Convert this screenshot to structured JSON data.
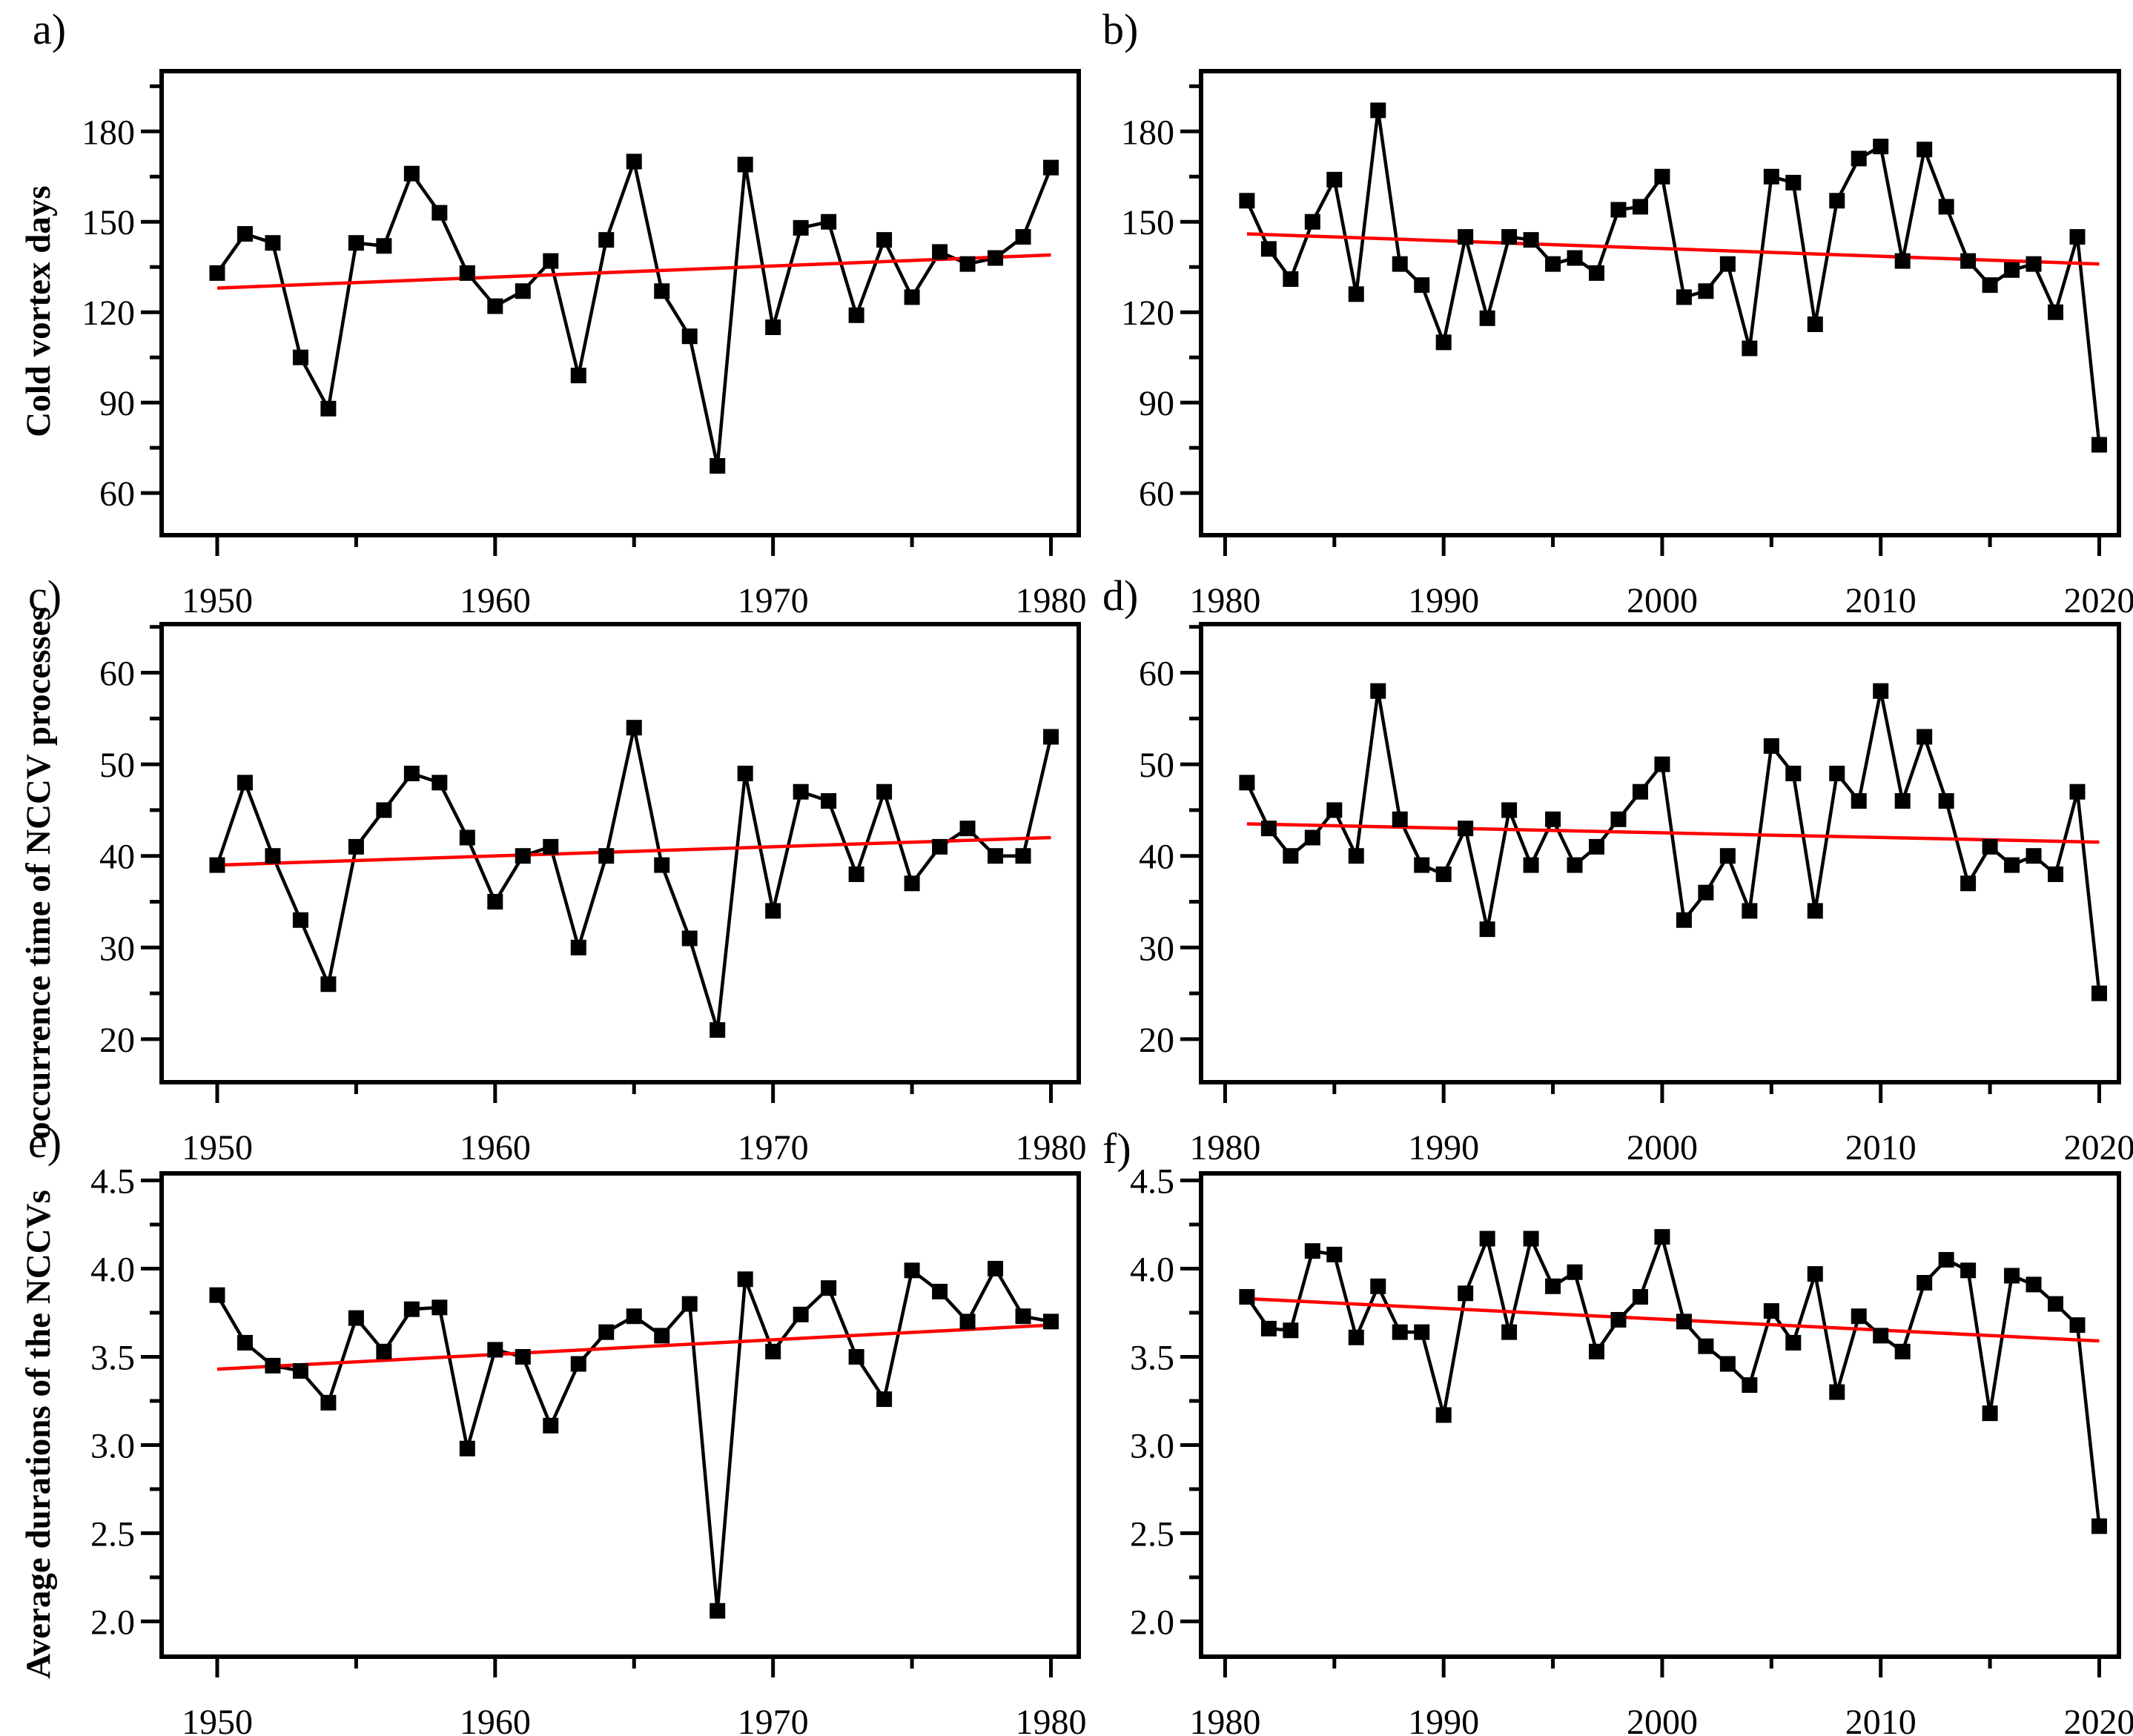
{
  "page": {
    "background": "#ffffff"
  },
  "colors": {
    "line": "#000000",
    "trend": "#fe0000",
    "frame": "#000000",
    "text": "#000000"
  },
  "chart_data": [
    {
      "id": "a",
      "type": "line",
      "letter": "a)",
      "ylabel": "Cold vortex days",
      "col": "left",
      "row": "1",
      "grid": false,
      "legend": "none",
      "marker": "square",
      "y_tick_decimals": 0,
      "xlim": [
        1948,
        1981
      ],
      "ylim": [
        46,
        200
      ],
      "x_major_ticks": [
        1950,
        1960,
        1970,
        1980
      ],
      "x_minor_ticks": [
        1955,
        1965,
        1975
      ],
      "y_major_ticks": [
        60,
        90,
        120,
        150,
        180
      ],
      "y_minor_ticks": [
        75,
        105,
        135,
        165,
        195
      ],
      "x": [
        1950,
        1951,
        1952,
        1953,
        1954,
        1955,
        1956,
        1957,
        1958,
        1959,
        1960,
        1961,
        1962,
        1963,
        1964,
        1965,
        1966,
        1967,
        1968,
        1969,
        1970,
        1971,
        1972,
        1973,
        1974,
        1975,
        1976,
        1977,
        1978,
        1979,
        1980
      ],
      "values": [
        133,
        146,
        143,
        105,
        88,
        143,
        142,
        166,
        153,
        133,
        122,
        127,
        137,
        99,
        144,
        170,
        127,
        112,
        69,
        169,
        115,
        148,
        150,
        119,
        144,
        125,
        140,
        136,
        138,
        145,
        168
      ],
      "trend": {
        "x": [
          1950,
          1980
        ],
        "values": [
          128,
          139
        ]
      }
    },
    {
      "id": "b",
      "type": "line",
      "letter": "b)",
      "ylabel": "",
      "col": "right",
      "row": "1",
      "grid": false,
      "legend": "none",
      "marker": "square",
      "y_tick_decimals": 0,
      "xlim": [
        1978.9,
        2020.9
      ],
      "ylim": [
        46,
        200
      ],
      "x_major_ticks": [
        1980,
        1990,
        2000,
        2010,
        2020
      ],
      "x_minor_ticks": [
        1985,
        1995,
        2005,
        2015
      ],
      "y_major_ticks": [
        60,
        90,
        120,
        150,
        180
      ],
      "y_minor_ticks": [
        75,
        105,
        135,
        165,
        195
      ],
      "x": [
        1981,
        1982,
        1983,
        1984,
        1985,
        1986,
        1987,
        1988,
        1989,
        1990,
        1991,
        1992,
        1993,
        1994,
        1995,
        1996,
        1997,
        1998,
        1999,
        2000,
        2001,
        2002,
        2003,
        2004,
        2005,
        2006,
        2007,
        2008,
        2009,
        2010,
        2011,
        2012,
        2013,
        2014,
        2015,
        2016,
        2017,
        2018,
        2019,
        2020
      ],
      "values": [
        157,
        141,
        131,
        150,
        164,
        126,
        187,
        136,
        129,
        110,
        145,
        118,
        145,
        144,
        136,
        138,
        133,
        154,
        155,
        165,
        125,
        127,
        136,
        108,
        165,
        163,
        116,
        157,
        171,
        175,
        137,
        174,
        155,
        137,
        129,
        134,
        136,
        120,
        145,
        76
      ],
      "trend": {
        "x": [
          1981,
          2020
        ],
        "values": [
          146,
          136
        ]
      }
    },
    {
      "id": "c",
      "type": "line",
      "letter": "c)",
      "ylabel": "occurrence time of NCCV processes",
      "col": "left",
      "row": "2",
      "grid": false,
      "legend": "none",
      "marker": "square",
      "y_tick_decimals": 0,
      "xlim": [
        1948,
        1981
      ],
      "ylim": [
        15.3,
        65.3
      ],
      "x_major_ticks": [
        1950,
        1960,
        1970,
        1980
      ],
      "x_minor_ticks": [
        1955,
        1965,
        1975
      ],
      "y_major_ticks": [
        20,
        30,
        40,
        50,
        60
      ],
      "y_minor_ticks": [
        25,
        35,
        45,
        55,
        65
      ],
      "x": [
        1950,
        1951,
        1952,
        1953,
        1954,
        1955,
        1956,
        1957,
        1958,
        1959,
        1960,
        1961,
        1962,
        1963,
        1964,
        1965,
        1966,
        1967,
        1968,
        1969,
        1970,
        1971,
        1972,
        1973,
        1974,
        1975,
        1976,
        1977,
        1978,
        1979,
        1980
      ],
      "values": [
        39,
        48,
        40,
        33,
        26,
        41,
        45,
        49,
        48,
        42,
        35,
        40,
        41,
        30,
        40,
        54,
        39,
        31,
        21,
        49,
        34,
        47,
        46,
        38,
        47,
        37,
        41,
        43,
        40,
        40,
        53
      ],
      "trend": {
        "x": [
          1950,
          1980
        ],
        "values": [
          39,
          42
        ]
      }
    },
    {
      "id": "d",
      "type": "line",
      "letter": "d)",
      "ylabel": "",
      "col": "right",
      "row": "2",
      "grid": false,
      "legend": "none",
      "marker": "square",
      "y_tick_decimals": 0,
      "xlim": [
        1978.9,
        2020.9
      ],
      "ylim": [
        15.3,
        65.3
      ],
      "x_major_ticks": [
        1980,
        1990,
        2000,
        2010,
        2020
      ],
      "x_minor_ticks": [
        1985,
        1995,
        2005,
        2015
      ],
      "y_major_ticks": [
        20,
        30,
        40,
        50,
        60
      ],
      "y_minor_ticks": [
        25,
        35,
        45,
        55,
        65
      ],
      "x": [
        1981,
        1982,
        1983,
        1984,
        1985,
        1986,
        1987,
        1988,
        1989,
        1990,
        1991,
        1992,
        1993,
        1994,
        1995,
        1996,
        1997,
        1998,
        1999,
        2000,
        2001,
        2002,
        2003,
        2004,
        2005,
        2006,
        2007,
        2008,
        2009,
        2010,
        2011,
        2012,
        2013,
        2014,
        2015,
        2016,
        2017,
        2018,
        2019,
        2020
      ],
      "values": [
        48,
        43,
        40,
        42,
        45,
        40,
        58,
        44,
        39,
        38,
        43,
        32,
        45,
        39,
        44,
        39,
        41,
        44,
        47,
        50,
        33,
        36,
        40,
        34,
        52,
        49,
        34,
        49,
        46,
        58,
        46,
        53,
        46,
        37,
        41,
        39,
        40,
        38,
        47,
        25
      ],
      "trend": {
        "x": [
          1981,
          2020
        ],
        "values": [
          43.5,
          41.5
        ]
      }
    },
    {
      "id": "e",
      "type": "line",
      "letter": "e)",
      "ylabel": "Average durations of the NCCVs",
      "col": "left",
      "row": "3",
      "grid": false,
      "legend": "none",
      "marker": "square",
      "y_tick_decimals": 1,
      "xlim": [
        1948,
        1981
      ],
      "ylim": [
        1.8,
        4.54
      ],
      "x_major_ticks": [
        1950,
        1960,
        1970,
        1980
      ],
      "x_minor_ticks": [
        1955,
        1965,
        1975
      ],
      "y_major_ticks": [
        2.0,
        2.5,
        3.0,
        3.5,
        4.0,
        4.5
      ],
      "y_minor_ticks": [
        2.25,
        2.75,
        3.25,
        3.75,
        4.25
      ],
      "x": [
        1950,
        1951,
        1952,
        1953,
        1954,
        1955,
        1956,
        1957,
        1958,
        1959,
        1960,
        1961,
        1962,
        1963,
        1964,
        1965,
        1966,
        1967,
        1968,
        1969,
        1970,
        1971,
        1972,
        1973,
        1974,
        1975,
        1976,
        1977,
        1978,
        1979,
        1980
      ],
      "values": [
        3.85,
        3.58,
        3.45,
        3.42,
        3.24,
        3.72,
        3.53,
        3.77,
        3.78,
        2.98,
        3.54,
        3.5,
        3.11,
        3.46,
        3.64,
        3.73,
        3.62,
        3.8,
        2.06,
        3.94,
        3.53,
        3.74,
        3.89,
        3.5,
        3.26,
        3.99,
        3.87,
        3.7,
        4.0,
        3.73,
        3.7
      ],
      "trend": {
        "x": [
          1950,
          1980
        ],
        "values": [
          3.43,
          3.68
        ]
      }
    },
    {
      "id": "f",
      "type": "line",
      "letter": "f)",
      "ylabel": "",
      "col": "right",
      "row": "3",
      "grid": false,
      "legend": "none",
      "marker": "square",
      "y_tick_decimals": 1,
      "xlim": [
        1978.9,
        2020.9
      ],
      "ylim": [
        1.8,
        4.54
      ],
      "x_major_ticks": [
        1980,
        1990,
        2000,
        2010,
        2020
      ],
      "x_minor_ticks": [
        1985,
        1995,
        2005,
        2015
      ],
      "y_major_ticks": [
        2.0,
        2.5,
        3.0,
        3.5,
        4.0,
        4.5
      ],
      "y_minor_ticks": [
        2.25,
        2.75,
        3.25,
        3.75,
        4.25
      ],
      "x": [
        1981,
        1982,
        1983,
        1984,
        1985,
        1986,
        1987,
        1988,
        1989,
        1990,
        1991,
        1992,
        1993,
        1994,
        1995,
        1996,
        1997,
        1998,
        1999,
        2000,
        2001,
        2002,
        2003,
        2004,
        2005,
        2006,
        2007,
        2008,
        2009,
        2010,
        2011,
        2012,
        2013,
        2014,
        2015,
        2016,
        2017,
        2018,
        2019,
        2020
      ],
      "values": [
        3.84,
        3.66,
        3.65,
        4.1,
        4.08,
        3.61,
        3.9,
        3.64,
        3.64,
        3.17,
        3.86,
        4.17,
        3.64,
        4.17,
        3.9,
        3.98,
        3.53,
        3.71,
        3.84,
        4.18,
        3.7,
        3.56,
        3.46,
        3.34,
        3.76,
        3.58,
        3.97,
        3.3,
        3.73,
        3.62,
        3.53,
        3.92,
        4.05,
        3.99,
        3.18,
        3.96,
        3.91,
        3.8,
        3.68,
        2.54
      ],
      "trend": {
        "x": [
          1981,
          2020
        ],
        "values": [
          3.83,
          3.59
        ]
      }
    }
  ]
}
